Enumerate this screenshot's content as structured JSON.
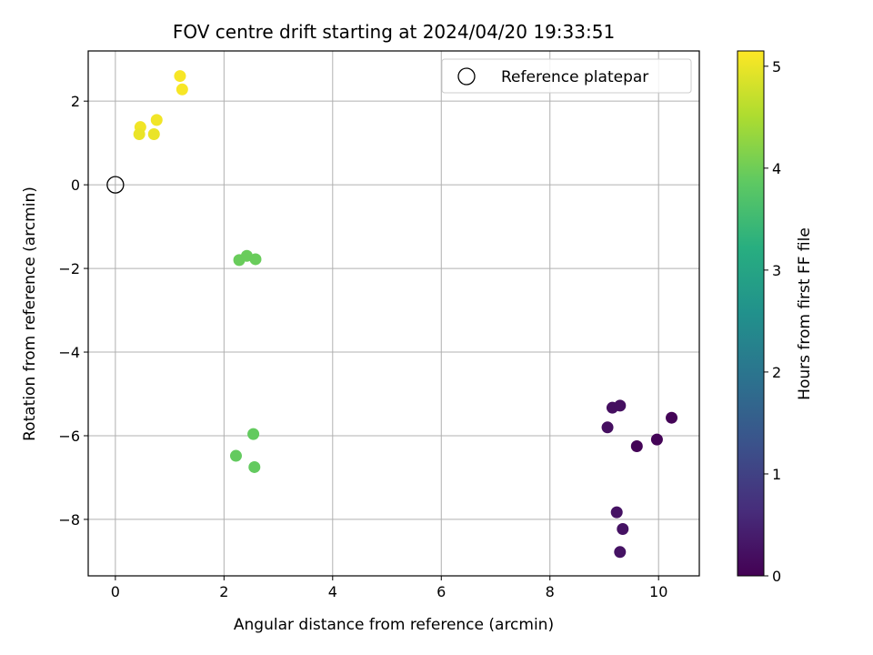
{
  "chart_data": {
    "type": "scatter",
    "title": "FOV centre drift starting at 2024/04/20 19:33:51",
    "xlabel": "Angular distance from reference (arcmin)",
    "ylabel": "Rotation from reference (arcmin)",
    "xlim": [
      -0.5,
      10.75
    ],
    "ylim": [
      -9.35,
      3.2
    ],
    "xticks": [
      0,
      2,
      4,
      6,
      8,
      10
    ],
    "yticks": [
      2,
      0,
      -2,
      -4,
      -6,
      -8
    ],
    "grid": true,
    "legend": {
      "placement": "upper-right",
      "entries": [
        {
          "label": "Reference platepar",
          "marker": "open-circle"
        }
      ]
    },
    "reference_point": {
      "x": 0,
      "y": 0
    },
    "colorbar": {
      "label": "Hours from first FF file",
      "range": [
        0,
        5.15
      ],
      "ticks": [
        0,
        1,
        2,
        3,
        4,
        5
      ],
      "colormap": "viridis"
    },
    "points": [
      {
        "x": 1.19,
        "y": 2.6,
        "hours": 5.1
      },
      {
        "x": 1.23,
        "y": 2.28,
        "hours": 5.1
      },
      {
        "x": 0.76,
        "y": 1.55,
        "hours": 5.05
      },
      {
        "x": 0.46,
        "y": 1.38,
        "hours": 5.05
      },
      {
        "x": 0.44,
        "y": 1.21,
        "hours": 5.0
      },
      {
        "x": 0.71,
        "y": 1.21,
        "hours": 5.0
      },
      {
        "x": 2.28,
        "y": -1.8,
        "hours": 3.95
      },
      {
        "x": 2.42,
        "y": -1.7,
        "hours": 3.95
      },
      {
        "x": 2.58,
        "y": -1.78,
        "hours": 3.95
      },
      {
        "x": 2.54,
        "y": -5.96,
        "hours": 3.9
      },
      {
        "x": 2.22,
        "y": -6.48,
        "hours": 3.9
      },
      {
        "x": 2.56,
        "y": -6.75,
        "hours": 3.9
      },
      {
        "x": 9.15,
        "y": -5.33,
        "hours": 0.2
      },
      {
        "x": 9.29,
        "y": -5.28,
        "hours": 0.2
      },
      {
        "x": 9.06,
        "y": -5.8,
        "hours": 0.2
      },
      {
        "x": 9.6,
        "y": -6.25,
        "hours": 0.05
      },
      {
        "x": 9.97,
        "y": -6.09,
        "hours": 0.05
      },
      {
        "x": 10.24,
        "y": -5.57,
        "hours": 0.05
      },
      {
        "x": 9.23,
        "y": -7.83,
        "hours": 0.25
      },
      {
        "x": 9.34,
        "y": -8.23,
        "hours": 0.25
      },
      {
        "x": 9.29,
        "y": -8.78,
        "hours": 0.25
      }
    ]
  }
}
